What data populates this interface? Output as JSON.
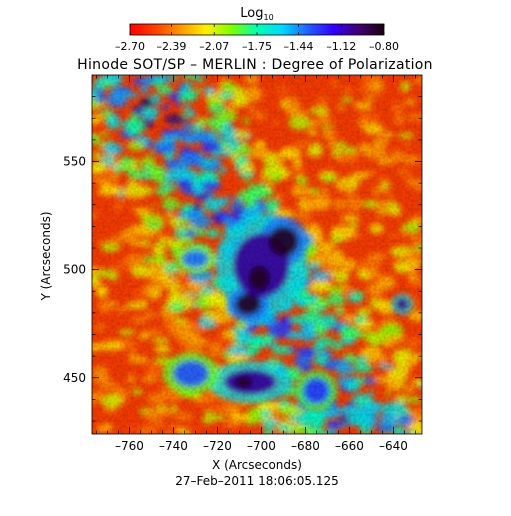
{
  "chart_data": {
    "type": "heatmap",
    "title": "Hinode SOT/SP – MERLIN : Degree of Polarization",
    "xlabel": "X (Arcseconds)",
    "ylabel": "Y (Arcseconds)",
    "date_label": "27–Feb–2011 18:06:05.125",
    "xlim": [
      -777,
      -627
    ],
    "ylim": [
      424,
      590
    ],
    "xticks": [
      -760,
      -740,
      -720,
      -700,
      -680,
      -660,
      -640
    ],
    "xtick_labels": [
      "–760",
      "–740",
      "–720",
      "–700",
      "–680",
      "–660",
      "–640"
    ],
    "yticks": [
      450,
      500,
      550
    ],
    "ytick_labels": [
      "450",
      "500",
      "550"
    ],
    "colorbar": {
      "title_base": "Log",
      "title_sub": "10",
      "range": [
        -2.7,
        -0.8
      ],
      "tick_values": [
        -2.7,
        -2.39,
        -2.07,
        -1.75,
        -1.44,
        -1.12,
        -0.8
      ],
      "tick_labels": [
        "–2.70",
        "–2.39",
        "–2.07",
        "–1.75",
        "–1.44",
        "–1.12",
        "–0.80"
      ],
      "colormap": [
        "#ff0000",
        "#ff4000",
        "#ff9a00",
        "#fff000",
        "#7dff00",
        "#00ffb0",
        "#00d8ff",
        "#2060ff",
        "#3000ff",
        "#400070",
        "#1a0010"
      ]
    },
    "features": [
      {
        "kind": "blob",
        "x": -700,
        "y": 502,
        "rx": 13,
        "ry": 15,
        "value": -1.05
      },
      {
        "kind": "blob",
        "x": -690,
        "y": 513,
        "rx": 7,
        "ry": 7,
        "value": -0.85
      },
      {
        "kind": "blob",
        "x": -701,
        "y": 496,
        "rx": 5,
        "ry": 6,
        "value": -0.85
      },
      {
        "kind": "blob",
        "x": -706,
        "y": 484,
        "rx": 6,
        "ry": 5,
        "value": -0.85
      },
      {
        "kind": "blob",
        "x": -705,
        "y": 448,
        "rx": 12,
        "ry": 6,
        "value": -1.05
      },
      {
        "kind": "blob",
        "x": -708,
        "y": 448,
        "rx": 4,
        "ry": 3,
        "value": -0.85
      },
      {
        "kind": "blob",
        "x": -636,
        "y": 484,
        "rx": 3,
        "ry": 3,
        "value": -1.0
      },
      {
        "kind": "blob",
        "x": -675,
        "y": 444,
        "rx": 6,
        "ry": 6,
        "value": -1.3
      },
      {
        "kind": "blob",
        "x": -732,
        "y": 452,
        "rx": 8,
        "ry": 6,
        "value": -1.35
      },
      {
        "kind": "blob",
        "x": -730,
        "y": 505,
        "rx": 6,
        "ry": 4,
        "value": -1.4
      }
    ]
  }
}
